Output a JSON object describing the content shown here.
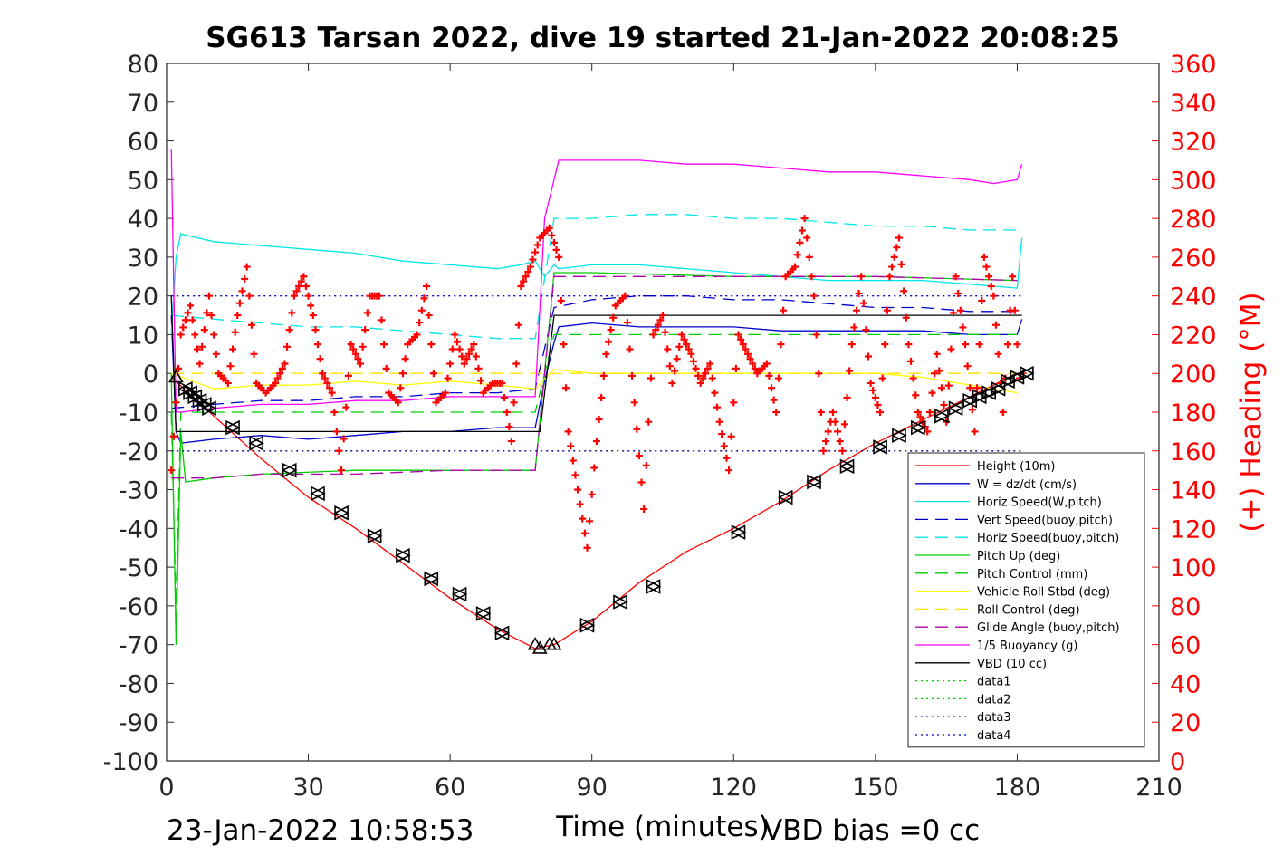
{
  "chart_data": {
    "type": "line",
    "title": "SG613 Tarsan 2022, dive 19 started 21-Jan-2022 20:08:25",
    "xlabel": "Time (minutes)",
    "ylabel_right": "(+) Heading (°M)",
    "footer_left": "23-Jan-2022 10:58:53",
    "footer_right": "VBD bias =0 cc",
    "xlim": [
      0,
      210
    ],
    "ylim": [
      -100,
      80
    ],
    "y2lim": [
      0,
      360
    ],
    "xticks": [
      "0",
      "30",
      "60",
      "90",
      "120",
      "150",
      "180",
      "210"
    ],
    "yticks": [
      "80",
      "70",
      "60",
      "50",
      "40",
      "30",
      "20",
      "10",
      "0",
      "-10",
      "-20",
      "-30",
      "-40",
      "-50",
      "-60",
      "-70",
      "-80",
      "-90",
      "-100"
    ],
    "y2ticks": [
      "360",
      "340",
      "320",
      "300",
      "280",
      "260",
      "240",
      "220",
      "200",
      "180",
      "160",
      "140",
      "120",
      "100",
      "80",
      "60",
      "40",
      "20",
      "0"
    ],
    "legend_position": "lower-right",
    "colors": {
      "heading": "#ff0000",
      "depth": "#ff0000",
      "w": "#0000cd",
      "hspeed": "#00e5e5",
      "vspeed_buoy": "#0000cd",
      "hspeed_buoy": "#00e5e5",
      "pitch": "#00cc00",
      "pitch_ctl": "#00cc00",
      "roll": "#ffff00",
      "roll_ctl": "#ffe000",
      "glide": "#b000b0",
      "buoy": "#ff00ff",
      "vbd": "#000000"
    },
    "series": [
      {
        "name": "Height (10m)",
        "style": "solid",
        "color": "#ff0000",
        "x": [
          1,
          10,
          20,
          30,
          40,
          50,
          60,
          70,
          78,
          82,
          90,
          100,
          110,
          120,
          130,
          140,
          150,
          160,
          170,
          180,
          182
        ],
        "y": [
          -1,
          -11,
          -22,
          -32,
          -40,
          -49,
          -58,
          -66,
          -71,
          -70,
          -64,
          -54,
          -46,
          -40,
          -33,
          -25,
          -18,
          -12,
          -6,
          0,
          0
        ]
      },
      {
        "name": "W = dz/dt (cm/s)",
        "style": "solid",
        "color": "#0000cd",
        "x": [
          1,
          2,
          3,
          10,
          20,
          30,
          40,
          50,
          60,
          70,
          78,
          80,
          82,
          83,
          90,
          100,
          110,
          120,
          130,
          140,
          150,
          160,
          170,
          180,
          181
        ],
        "y": [
          15,
          -15,
          -18,
          -17,
          -16,
          -17,
          -16,
          -15,
          -15,
          -14,
          -14,
          -2,
          8,
          12,
          13,
          12,
          12,
          12,
          11,
          11,
          11,
          11,
          10,
          10,
          14
        ]
      },
      {
        "name": "Horiz Speed(W,pitch)",
        "style": "solid",
        "color": "#00e5e5",
        "x": [
          1,
          2,
          3,
          10,
          20,
          30,
          40,
          50,
          60,
          70,
          75,
          78,
          80,
          82,
          83,
          90,
          100,
          110,
          120,
          130,
          140,
          150,
          160,
          170,
          180,
          181
        ],
        "y": [
          10,
          30,
          36,
          34,
          33,
          32,
          31,
          29,
          28,
          27,
          28,
          29,
          25,
          28,
          27,
          28,
          28,
          27,
          26,
          25,
          24,
          24,
          24,
          23,
          22,
          35
        ]
      },
      {
        "name": "Vert Speed(buoy,pitch)",
        "style": "dashed",
        "color": "#0000cd",
        "x": [
          1,
          10,
          20,
          30,
          40,
          50,
          60,
          70,
          78,
          82,
          90,
          100,
          110,
          120,
          130,
          140,
          150,
          160,
          170,
          180
        ],
        "y": [
          -9,
          -8,
          -7,
          -7,
          -6,
          -6,
          -5,
          -5,
          -4,
          17,
          19,
          20,
          20,
          19,
          19,
          18,
          17,
          17,
          16,
          16
        ]
      },
      {
        "name": "Horiz Speed(buoy,pitch)",
        "style": "dashed",
        "color": "#00e5e5",
        "x": [
          1,
          10,
          20,
          30,
          40,
          50,
          60,
          70,
          78,
          82,
          90,
          100,
          110,
          120,
          130,
          140,
          150,
          160,
          170,
          180
        ],
        "y": [
          15,
          14,
          13,
          12,
          12,
          11,
          10,
          9,
          9,
          40,
          40,
          41,
          41,
          40,
          40,
          39,
          38,
          38,
          37,
          37
        ]
      },
      {
        "name": "Pitch Up (deg)",
        "style": "solid",
        "color": "#00cc00",
        "x": [
          1,
          2,
          3,
          4,
          10,
          20,
          40,
          60,
          78,
          82,
          90,
          120,
          150,
          180
        ],
        "y": [
          0,
          -70,
          -15,
          -28,
          -27,
          -26,
          -25,
          -25,
          -25,
          26,
          26,
          25,
          25,
          24
        ]
      },
      {
        "name": "Pitch Control (mm)",
        "style": "dashed",
        "color": "#00cc00",
        "x": [
          1,
          2,
          3,
          10,
          40,
          78,
          82,
          120,
          150,
          180
        ],
        "y": [
          -10,
          -60,
          -10,
          -10,
          -10,
          -10,
          10,
          10,
          10,
          10
        ]
      },
      {
        "name": "Vehicle Roll Stbd (deg)",
        "style": "solid",
        "color": "#ffff00",
        "x": [
          1,
          10,
          20,
          30,
          40,
          50,
          60,
          70,
          78,
          82,
          90,
          100,
          110,
          120,
          130,
          140,
          150,
          160,
          170,
          180
        ],
        "y": [
          0,
          -4,
          -3,
          -3,
          -2,
          -3,
          -2,
          -3,
          -4,
          1,
          0,
          0,
          0,
          0,
          0,
          0,
          0,
          -1,
          -3,
          -5
        ]
      },
      {
        "name": "Roll Control (deg)",
        "style": "dashed",
        "color": "#ffe000",
        "x": [
          1,
          10,
          20,
          30,
          40,
          50,
          60,
          70,
          78,
          82,
          90,
          100,
          110,
          120,
          130,
          140,
          150,
          160,
          170,
          180
        ],
        "y": [
          0,
          0,
          0,
          0,
          0,
          0,
          0,
          0,
          0,
          0,
          0,
          0,
          0,
          0,
          0,
          0,
          0,
          0,
          0,
          0
        ]
      },
      {
        "name": "Glide Angle (buoy,pitch)",
        "style": "dashed",
        "color": "#b000b0",
        "x": [
          1,
          10,
          20,
          40,
          60,
          78,
          82,
          120,
          150,
          180
        ],
        "y": [
          -27,
          -27,
          -26,
          -26,
          -25,
          -25,
          25,
          25,
          25,
          24
        ]
      },
      {
        "name": "1/5 Buoyancy (g)",
        "style": "solid",
        "color": "#ff00ff",
        "x": [
          1,
          2,
          3,
          10,
          20,
          30,
          40,
          50,
          60,
          70,
          78,
          80,
          83,
          90,
          100,
          110,
          120,
          130,
          140,
          150,
          160,
          170,
          175,
          180,
          181
        ],
        "y": [
          58,
          -10,
          -10,
          -9,
          -8,
          -8,
          -7,
          -7,
          -6,
          -6,
          -6,
          40,
          55,
          55,
          55,
          54,
          54,
          53,
          52,
          52,
          51,
          50,
          49,
          50,
          54
        ]
      },
      {
        "name": "VBD (10 cc)",
        "style": "solid",
        "color": "#000000",
        "x": [
          1,
          2,
          3,
          78,
          79,
          82,
          83,
          181
        ],
        "y": [
          20,
          -15,
          -15,
          -15,
          -15,
          15,
          15,
          15
        ]
      },
      {
        "name": "data1",
        "style": "dotted",
        "color": "#00cc00",
        "x": [],
        "y": []
      },
      {
        "name": "data2",
        "style": "dotted",
        "color": "#00cc00",
        "x": [],
        "y": []
      },
      {
        "name": "data3",
        "style": "dotted",
        "color": "#000080",
        "x": [
          1,
          181
        ],
        "y": [
          -20,
          -20
        ]
      },
      {
        "name": "data4",
        "style": "dotted",
        "color": "#0000cd",
        "x": [
          1,
          181
        ],
        "y": [
          20,
          20
        ]
      }
    ],
    "heading": {
      "x": [
        1,
        3,
        5,
        7,
        9,
        11,
        13,
        15,
        17,
        19,
        21,
        23,
        25,
        27,
        29,
        31,
        33,
        35,
        37,
        39,
        41,
        43,
        45,
        47,
        49,
        51,
        53,
        55,
        57,
        59,
        61,
        63,
        65,
        67,
        69,
        71,
        73,
        75,
        77,
        79,
        81,
        83,
        85,
        87,
        89,
        91,
        93,
        95,
        97,
        99,
        101,
        103,
        105,
        107,
        109,
        111,
        113,
        115,
        117,
        119,
        121,
        123,
        125,
        127,
        129,
        131,
        133,
        135,
        137,
        139,
        141,
        143,
        145,
        147,
        149,
        151,
        153,
        155,
        157,
        159,
        161,
        163,
        165,
        167,
        169,
        171,
        173,
        175,
        177,
        179,
        181
      ],
      "y": [
        150,
        220,
        235,
        205,
        240,
        200,
        195,
        230,
        255,
        195,
        190,
        195,
        205,
        240,
        250,
        230,
        200,
        190,
        150,
        215,
        205,
        240,
        240,
        190,
        185,
        215,
        220,
        245,
        185,
        190,
        220,
        205,
        215,
        190,
        195,
        195,
        165,
        245,
        255,
        270,
        275,
        260,
        170,
        140,
        110,
        165,
        210,
        235,
        240,
        185,
        130,
        220,
        230,
        195,
        220,
        210,
        195,
        205,
        175,
        150,
        220,
        210,
        200,
        205,
        180,
        250,
        255,
        280,
        240,
        160,
        180,
        160,
        215,
        250,
        195,
        180,
        250,
        270,
        215,
        180,
        170,
        210,
        175,
        250,
        215,
        170,
        260,
        240,
        180,
        250,
        180
      ]
    },
    "markers": {
      "x": [
        2,
        4,
        5,
        6,
        7,
        8,
        9,
        14,
        19,
        26,
        32,
        37,
        44,
        50,
        56,
        62,
        67,
        71,
        78,
        79,
        81,
        82,
        89,
        96,
        103,
        121,
        131,
        137,
        144,
        151,
        155,
        159,
        164,
        167,
        170,
        172,
        174,
        176,
        178,
        180,
        182
      ],
      "y": [
        -1,
        -4,
        -5,
        -6,
        -7,
        -8,
        -9,
        -14,
        -18,
        -25,
        -31,
        -36,
        -42,
        -47,
        -53,
        -57,
        -62,
        -67,
        -70,
        -71,
        -70,
        -70,
        -65,
        -59,
        -55,
        -41,
        -32,
        -28,
        -24,
        -19,
        -16,
        -14,
        -11,
        -9,
        -7,
        -6,
        -5,
        -4,
        -2,
        -1,
        0
      ]
    }
  }
}
